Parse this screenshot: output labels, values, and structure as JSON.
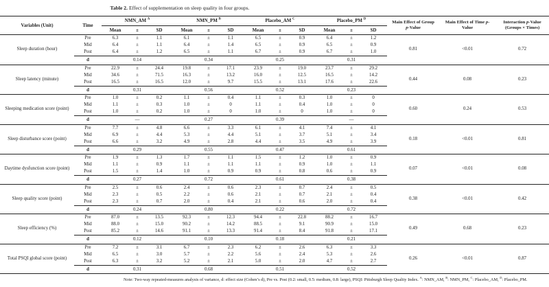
{
  "title": {
    "label": "Table 2.",
    "text": "Effect of supplementation on sleep quality in four groups."
  },
  "header": {
    "variables": "Variables (Unit)",
    "time": "Time",
    "mean": "Mean",
    "pm": "±",
    "sd": "SD",
    "groups": [
      {
        "name": "NMN_AM",
        "sup": "A"
      },
      {
        "name": "NMN_PM",
        "sup": "B"
      },
      {
        "name": "Placebo_AM",
        "sup": "C"
      },
      {
        "name": "Placebo_PM",
        "sup": "D"
      }
    ],
    "p_columns": [
      "Main Effect of Group p-Value",
      "Main Effect of Time p-Value",
      "Interaction p-Value (Groups × Times)"
    ]
  },
  "time_labels": [
    "Pre",
    "Mid",
    "Post"
  ],
  "d_label": "d",
  "blocks": [
    {
      "variable": "Sleep duration (hour)",
      "values": [
        [
          [
            "6.3",
            "1.1"
          ],
          [
            "6.1",
            "1.1"
          ],
          [
            "6.5",
            "0.9"
          ],
          [
            "6.4",
            "1.2"
          ]
        ],
        [
          [
            "6.4",
            "1.1"
          ],
          [
            "6.4",
            "1.4"
          ],
          [
            "6.5",
            "0.9"
          ],
          [
            "6.5",
            "0.9"
          ]
        ],
        [
          [
            "6.4",
            "1.2"
          ],
          [
            "6.5",
            "1.1"
          ],
          [
            "6.7",
            "0.9"
          ],
          [
            "6.7",
            "1.0"
          ]
        ]
      ],
      "d": [
        "0.14",
        "0.34",
        "0.25",
        "0.31"
      ],
      "p": [
        "0.81",
        "<0.01",
        "0.72"
      ]
    },
    {
      "variable": "Sleep latency (minute)",
      "values": [
        [
          [
            "22.9",
            "24.4"
          ],
          [
            "19.8",
            "17.1"
          ],
          [
            "23.9",
            "19.0"
          ],
          [
            "23.7",
            "29.2"
          ]
        ],
        [
          [
            "34.6",
            "71.5"
          ],
          [
            "16.3",
            "13.2"
          ],
          [
            "16.0",
            "12.5"
          ],
          [
            "16.5",
            "14.2"
          ]
        ],
        [
          [
            "16.5",
            "16.5"
          ],
          [
            "12.0",
            "9.7"
          ],
          [
            "15.5",
            "13.1"
          ],
          [
            "17.6",
            "22.6"
          ]
        ]
      ],
      "d": [
        "0.31",
        "0.56",
        "0.52",
        "0.23"
      ],
      "p": [
        "0.44",
        "0.08",
        "0.23"
      ]
    },
    {
      "variable": "Sleeping medication score (point)",
      "values": [
        [
          [
            "1.0",
            "0.2"
          ],
          [
            "1.1",
            "0.4"
          ],
          [
            "1.1",
            "0.3"
          ],
          [
            "1.0",
            "0"
          ]
        ],
        [
          [
            "1.1",
            "0.3"
          ],
          [
            "1.0",
            "0"
          ],
          [
            "1.1",
            "0.4"
          ],
          [
            "1.0",
            "0"
          ]
        ],
        [
          [
            "1.0",
            "0.2"
          ],
          [
            "1.0",
            "0"
          ],
          [
            "1.0",
            "0"
          ],
          [
            "1.0",
            "0"
          ]
        ]
      ],
      "d": [
        "—",
        "0.27",
        "0.39",
        "—"
      ],
      "p": [
        "0.60",
        "0.24",
        "0.53"
      ]
    },
    {
      "variable": "Sleep disturbance score (point)",
      "values": [
        [
          [
            "7.7",
            "4.8"
          ],
          [
            "6.6",
            "3.3"
          ],
          [
            "6.1",
            "4.1"
          ],
          [
            "7.4",
            "4.1"
          ]
        ],
        [
          [
            "6.9",
            "4.4"
          ],
          [
            "5.3",
            "4.4"
          ],
          [
            "5.1",
            "3.7"
          ],
          [
            "5.1",
            "3.4"
          ]
        ],
        [
          [
            "6.6",
            "3.2"
          ],
          [
            "4.9",
            "2.8"
          ],
          [
            "4.4",
            "3.5"
          ],
          [
            "4.9",
            "3.9"
          ]
        ]
      ],
      "d": [
        "0.29",
        "0.55",
        "0.47",
        "0.61"
      ],
      "p": [
        "0.18",
        "<0.01",
        "0.81"
      ]
    },
    {
      "variable": "Daytime dysfunction score (point)",
      "values": [
        [
          [
            "1.9",
            "1.3"
          ],
          [
            "1.7",
            "1.1"
          ],
          [
            "1.5",
            "1.2"
          ],
          [
            "1.0",
            "0.9"
          ]
        ],
        [
          [
            "1.1",
            "0.9"
          ],
          [
            "1.1",
            "1.1"
          ],
          [
            "1.1",
            "0.9"
          ],
          [
            "1.0",
            "1.1"
          ]
        ],
        [
          [
            "1.5",
            "1.4"
          ],
          [
            "1.0",
            "0.9"
          ],
          [
            "0.9",
            "0.8"
          ],
          [
            "0.6",
            "0.9"
          ]
        ]
      ],
      "d": [
        "0.27",
        "0.72",
        "0.61",
        "0.38"
      ],
      "p": [
        "0.07",
        "<0.01",
        "0.08"
      ]
    },
    {
      "variable": "Sleep quality score (point)",
      "values": [
        [
          [
            "2.5",
            "0.6"
          ],
          [
            "2.4",
            "0.6"
          ],
          [
            "2.3",
            "0.7"
          ],
          [
            "2.4",
            "0.5"
          ]
        ],
        [
          [
            "2.3",
            "0.5"
          ],
          [
            "2.2",
            "0.6"
          ],
          [
            "2.1",
            "0.7"
          ],
          [
            "2.1",
            "0.4"
          ]
        ],
        [
          [
            "2.3",
            "0.7"
          ],
          [
            "2.0",
            "0.4"
          ],
          [
            "2.1",
            "0.6"
          ],
          [
            "2.0",
            "0.4"
          ]
        ]
      ],
      "d": [
        "0.24",
        "0.80",
        "0.22",
        "0.72"
      ],
      "p": [
        "0.38",
        "<0.01",
        "0.42"
      ]
    },
    {
      "variable": "Sleep efficiency (%)",
      "values": [
        [
          [
            "87.0",
            "13.5"
          ],
          [
            "92.3",
            "12.3"
          ],
          [
            "94.4",
            "22.8"
          ],
          [
            "88.2",
            "16.7"
          ]
        ],
        [
          [
            "88.0",
            "15.0"
          ],
          [
            "90.2",
            "14.2"
          ],
          [
            "88.5",
            "9.1"
          ],
          [
            "90.9",
            "15.0"
          ]
        ],
        [
          [
            "85.2",
            "14.6"
          ],
          [
            "91.1",
            "13.3"
          ],
          [
            "91.4",
            "8.4"
          ],
          [
            "91.8",
            "17.1"
          ]
        ]
      ],
      "d": [
        "0.12",
        "0.10",
        "0.18",
        "0.21"
      ],
      "p": [
        "0.49",
        "0.68",
        "0.23"
      ]
    },
    {
      "variable": "Total PSQI global score (point)",
      "values": [
        [
          [
            "7.2",
            "3.1"
          ],
          [
            "6.7",
            "2.3"
          ],
          [
            "6.2",
            "2.6"
          ],
          [
            "6.3",
            "3.3"
          ]
        ],
        [
          [
            "6.5",
            "3.0"
          ],
          [
            "5.7",
            "2.2"
          ],
          [
            "5.6",
            "2.4"
          ],
          [
            "5.3",
            "2.6"
          ]
        ],
        [
          [
            "6.3",
            "3.2"
          ],
          [
            "5.2",
            "2.1"
          ],
          [
            "5.0",
            "2.0"
          ],
          [
            "4.7",
            "2.7"
          ]
        ]
      ],
      "d": [
        "0.31",
        "0.68",
        "0.51",
        "0.52"
      ],
      "p": [
        "0.26",
        "<0.01",
        "0.87"
      ]
    }
  ],
  "footnote": "Note: Two-way repeated-measures analysis of variance, d: effect size (Cohen’s d), Pre vs. Post (0.2: small, 0.5: medium, 0.8: large), PSQI: Pittsburgh Sleep Quality Index. ^A^: NMN_AM, ^B^: NMN_PM, ^C^: Placebo_AM, ^D^: Placebo_PM."
}
